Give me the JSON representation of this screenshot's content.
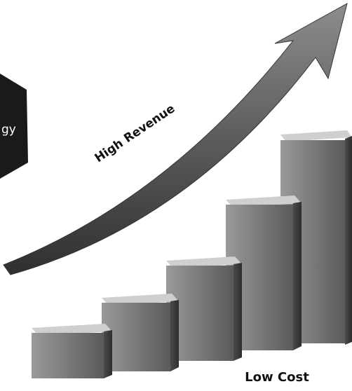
{
  "labels": {
    "badge": "gy",
    "high_revenue": "High Revenue",
    "low_cost": "Low Cost"
  }
}
